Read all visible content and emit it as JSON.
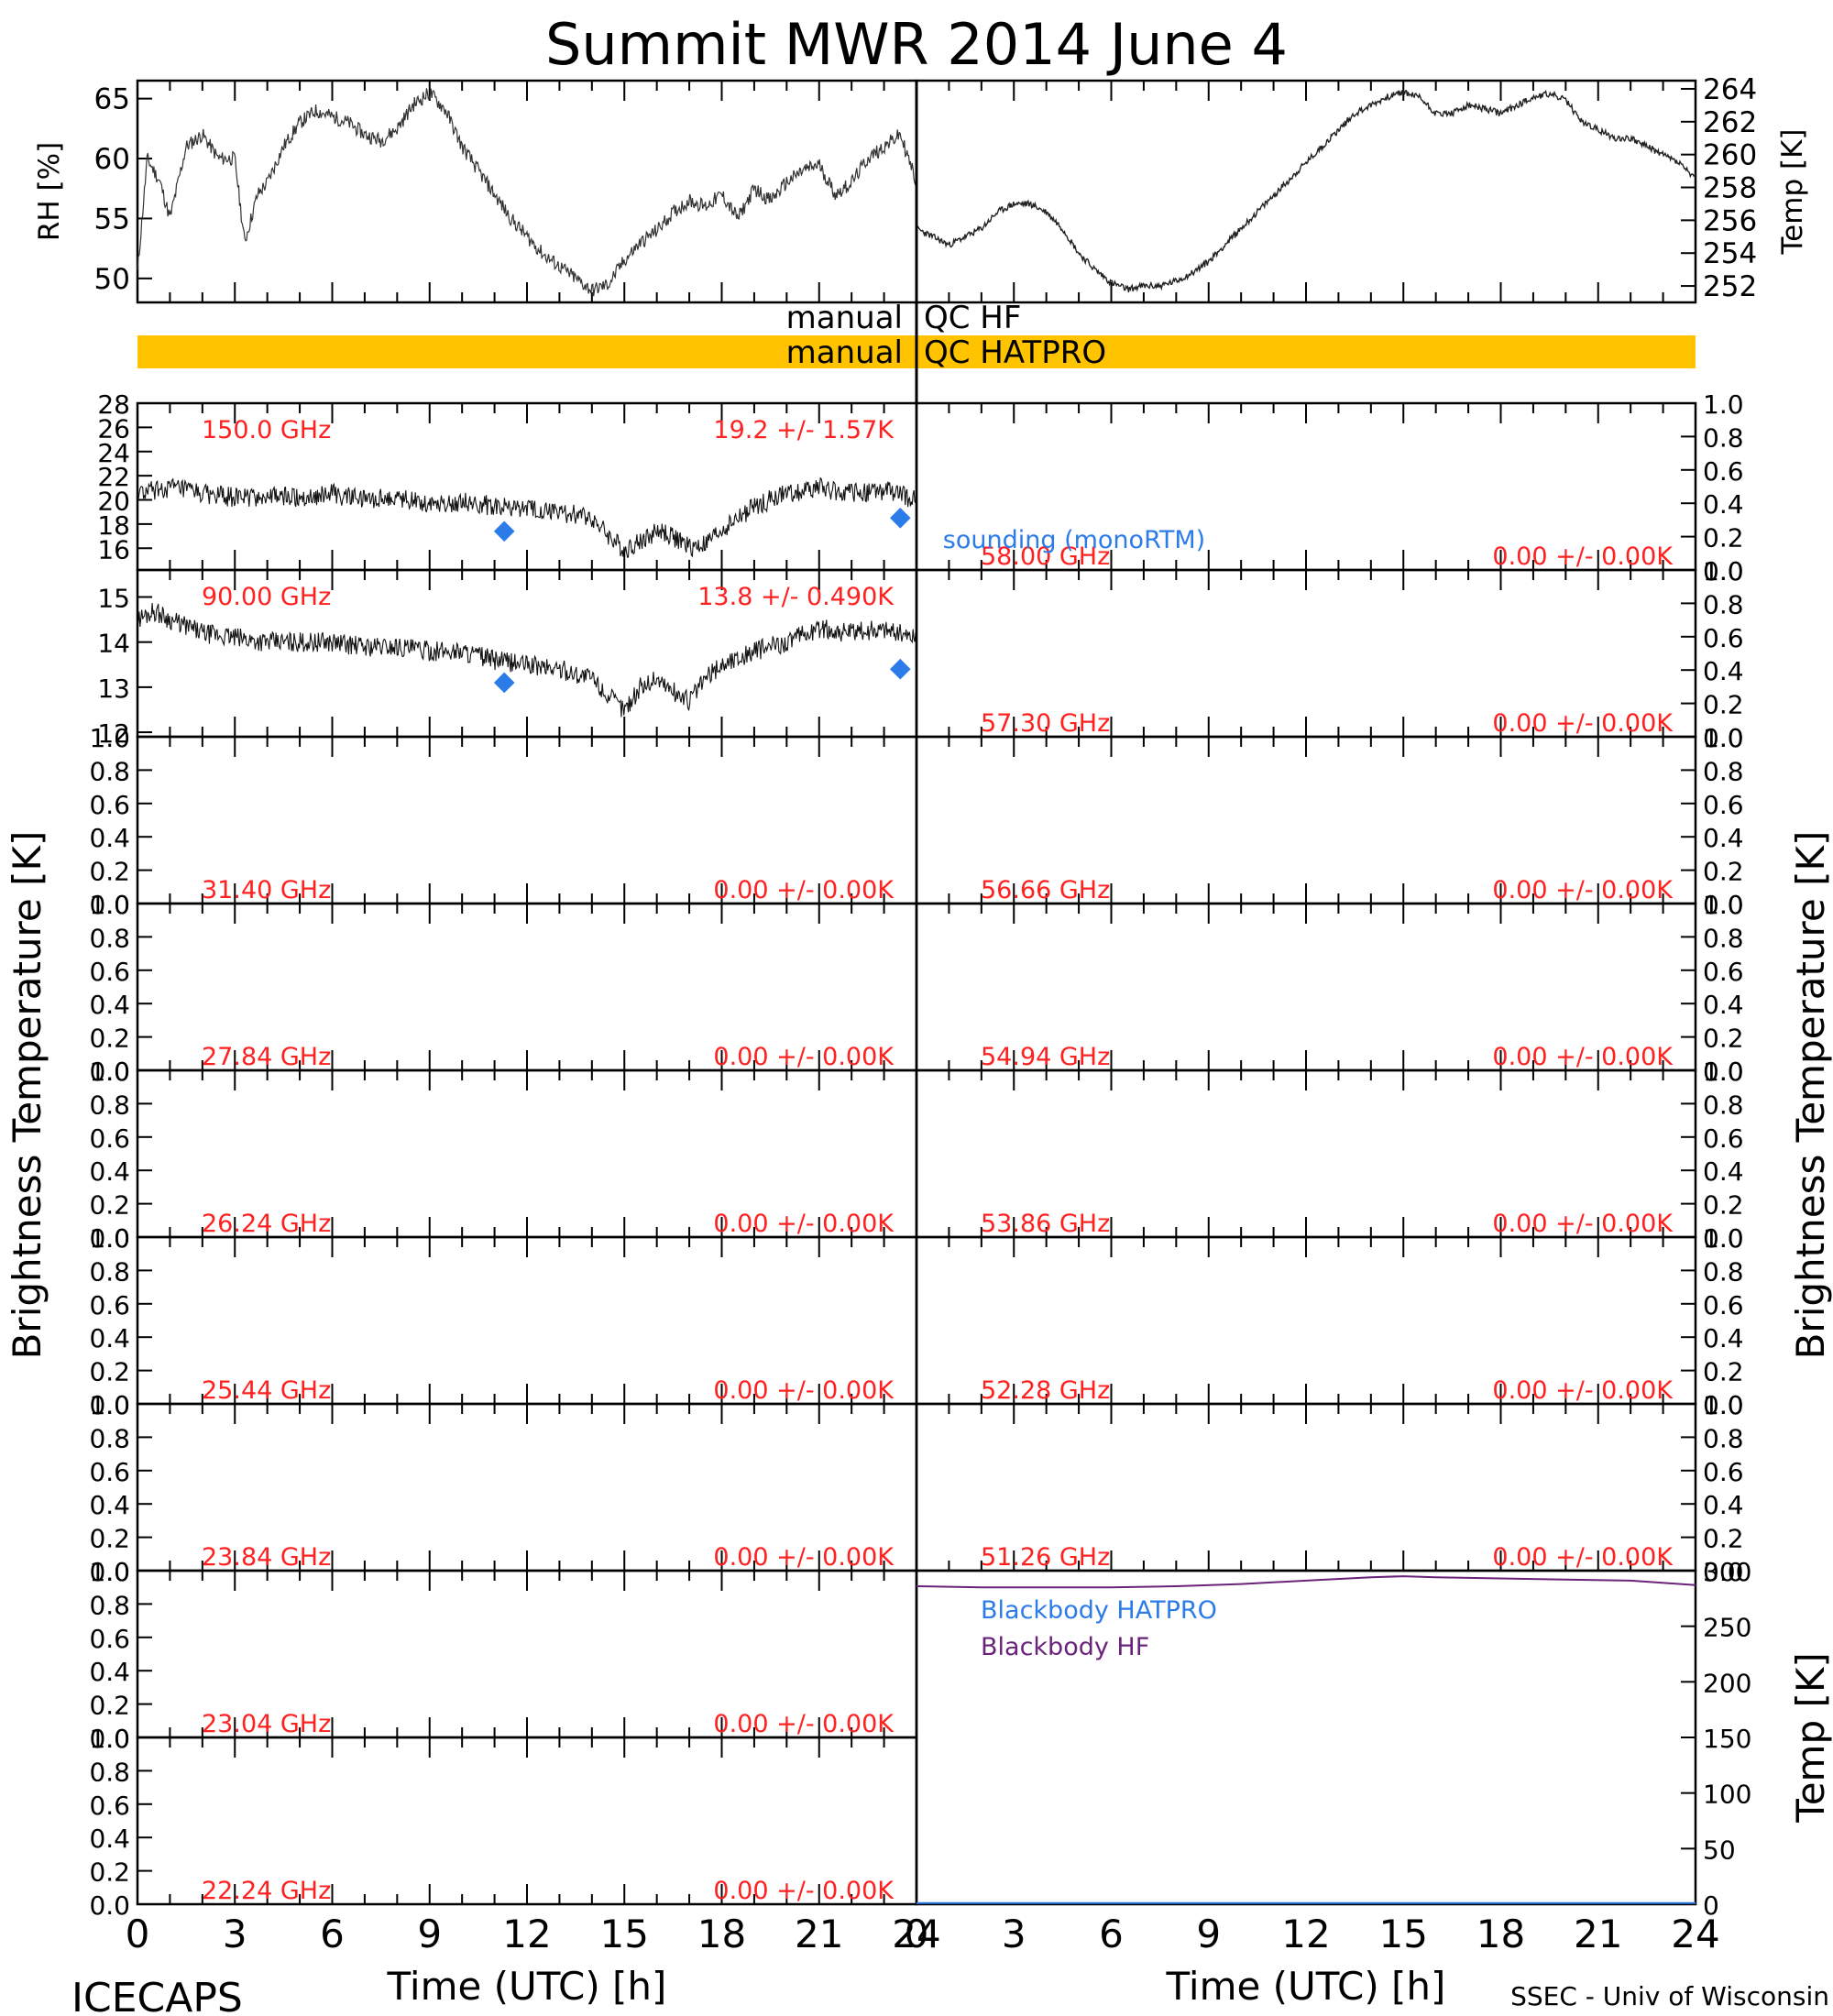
{
  "title": "Summit MWR 2014 June  4",
  "footer": {
    "left": "ICECAPS",
    "right": "SSEC - Univ of Wisconsin"
  },
  "x_axis": {
    "label": "Time (UTC) [h]",
    "ticks": [
      "0",
      "3",
      "6",
      "9",
      "12",
      "15",
      "18",
      "21",
      "24"
    ]
  },
  "left_axis_title": "Brightness Temperature [K]",
  "right_axis_title": "Brightness Temperature [K]",
  "colors": {
    "accent_red": "#ff2020",
    "sounding_blue": "#2b7be8",
    "bb_purple": "#6a237a",
    "qc_bar": "#ffc300"
  },
  "qc": {
    "hf_left": "manual",
    "hf_right": "QC HF",
    "hatpro_left": "manual",
    "hatpro_right": "QC HATPRO"
  },
  "sounding_label": "sounding (monoRTM)",
  "blackbody": {
    "hatpro_label": "Blackbody HATPRO",
    "hf_label": "Blackbody HF"
  },
  "chart_data": [
    {
      "id": "met",
      "type": "line",
      "title": "",
      "xlabel": "Time (UTC) [h]",
      "left": {
        "ylabel": "RH [%]",
        "ylim": [
          48,
          66.5
        ],
        "ticks": [
          "50",
          "55",
          "60",
          "65"
        ],
        "x": [
          0,
          0.3,
          0.7,
          1,
          1.5,
          2,
          2.5,
          3,
          3.3,
          3.7,
          4,
          4.5,
          5,
          5.5,
          6,
          6.5,
          7,
          7.5,
          8,
          8.5,
          9,
          9.5,
          10,
          10.5,
          11,
          11.5,
          12,
          12.5,
          13,
          13.5,
          14,
          14.5,
          15,
          15.5,
          16,
          16.5,
          17,
          17.5,
          18,
          18.5,
          19,
          19.5,
          20,
          20.5,
          21,
          21.5,
          22,
          22.5,
          23,
          23.5,
          24
        ],
        "y": [
          50.5,
          60,
          58,
          55,
          61,
          62,
          60,
          60,
          53,
          57,
          58,
          61,
          63,
          64,
          63.5,
          63,
          62,
          61.5,
          62.5,
          64.5,
          65.5,
          64,
          61,
          59,
          57,
          55,
          53.5,
          52,
          51,
          50,
          49,
          49.5,
          51.5,
          53,
          54,
          55.5,
          56.5,
          56,
          57,
          55,
          57.5,
          56.5,
          58,
          59,
          59.5,
          57,
          58,
          60,
          61,
          62,
          58
        ]
      },
      "right": {
        "ylabel": "Temp [K]",
        "ylim": [
          251,
          264.5
        ],
        "ticks": [
          "252",
          "254",
          "256",
          "258",
          "260",
          "262",
          "264"
        ],
        "x": [
          0,
          0.5,
          1,
          1.5,
          2,
          2.5,
          3,
          3.5,
          4,
          4.5,
          5,
          5.5,
          6,
          6.5,
          7,
          7.5,
          8,
          8.5,
          9,
          9.5,
          10,
          10.5,
          11,
          11.5,
          12,
          12.5,
          13,
          13.5,
          14,
          14.5,
          15,
          15.5,
          16,
          16.5,
          17,
          17.5,
          18,
          18.5,
          19,
          19.5,
          20,
          20.5,
          21,
          21.5,
          22,
          22.5,
          23,
          23.5,
          24
        ],
        "y": [
          255.5,
          255,
          254.5,
          255,
          255.5,
          256.5,
          257,
          257,
          256.5,
          255.5,
          254,
          253,
          252.2,
          251.8,
          252,
          252,
          252.3,
          252.8,
          253.5,
          254.5,
          255.5,
          256.5,
          257.5,
          258.5,
          259.5,
          260.5,
          261.5,
          262.5,
          263,
          263.5,
          263.8,
          263.5,
          262.5,
          262.5,
          263,
          262.8,
          262.5,
          263,
          263.5,
          263.7,
          263.3,
          262,
          261.5,
          261,
          261,
          260.5,
          260,
          259.5,
          258.5
        ]
      }
    },
    {
      "id": "ch-150",
      "type": "line",
      "label": "150.0 GHz",
      "stats": "19.2 +/-  1.57K",
      "ylim": [
        14.2,
        28
      ],
      "ticks": [
        "16",
        "18",
        "20",
        "22",
        "24",
        "26",
        "28"
      ],
      "x": [
        0,
        1,
        2,
        3,
        4,
        5,
        6,
        7,
        8,
        9,
        10,
        11,
        12,
        13,
        14,
        14.5,
        15,
        15.5,
        16,
        16.5,
        17,
        17.5,
        18,
        18.5,
        19,
        20,
        21,
        22,
        23,
        24
      ],
      "y": [
        20.5,
        21,
        20.5,
        20.2,
        20.3,
        20.2,
        20.5,
        20,
        20.2,
        19.8,
        19.8,
        19.5,
        19.2,
        19,
        18.5,
        17,
        15.8,
        16.5,
        17.5,
        17,
        16,
        16.3,
        17.5,
        18.5,
        19.5,
        20.5,
        21,
        20.5,
        20.8,
        20
      ],
      "sounding": [
        {
          "x": 11.3,
          "y": 17.4
        },
        {
          "x": 23.5,
          "y": 18.5
        }
      ]
    },
    {
      "id": "ch-90",
      "type": "line",
      "label": "90.00 GHz",
      "stats": "13.8 +/- 0.490K",
      "ylim": [
        11.9,
        15.6
      ],
      "ticks": [
        "12",
        "13",
        "14",
        "15"
      ],
      "x": [
        0,
        0.5,
        1,
        2,
        3,
        4,
        5,
        6,
        7,
        8,
        9,
        10,
        11,
        12,
        13,
        14,
        14.5,
        15,
        15.5,
        16,
        16.5,
        17,
        17.5,
        18,
        19,
        20,
        21,
        22,
        23,
        24
      ],
      "y": [
        14.5,
        14.7,
        14.5,
        14.2,
        14.1,
        14,
        14,
        14,
        13.9,
        13.9,
        13.8,
        13.8,
        13.6,
        13.5,
        13.4,
        13.2,
        12.8,
        12.5,
        13,
        13.2,
        12.9,
        12.7,
        13.2,
        13.5,
        13.8,
        14,
        14.3,
        14.2,
        14.3,
        14.1
      ],
      "sounding": [
        {
          "x": 11.3,
          "y": 13.1
        },
        {
          "x": 23.5,
          "y": 13.4
        }
      ]
    },
    {
      "id": "ch-58.00",
      "type": "line",
      "label": "58.00 GHz",
      "stats": "0.00 +/-  0.00K",
      "ylim": [
        0,
        1
      ],
      "ticks": [
        "0.0",
        "0.2",
        "0.4",
        "0.6",
        "0.8",
        "1.0"
      ],
      "values": []
    },
    {
      "id": "ch-57.30",
      "type": "line",
      "label": "57.30 GHz",
      "stats": "0.00 +/-  0.00K",
      "ylim": [
        0,
        1
      ],
      "ticks": [
        "0.0",
        "0.2",
        "0.4",
        "0.6",
        "0.8",
        "1.0"
      ],
      "values": []
    },
    {
      "id": "ch-31.40",
      "type": "line",
      "label": "31.40 GHz",
      "stats": "0.00 +/-  0.00K",
      "ylim": [
        0,
        1
      ],
      "ticks": [
        "0.0",
        "0.2",
        "0.4",
        "0.6",
        "0.8",
        "1.0"
      ],
      "values": []
    },
    {
      "id": "ch-56.66",
      "type": "line",
      "label": "56.66 GHz",
      "stats": "0.00 +/-  0.00K",
      "ylim": [
        0,
        1
      ],
      "ticks": [
        "0.0",
        "0.2",
        "0.4",
        "0.6",
        "0.8",
        "1.0"
      ],
      "values": []
    },
    {
      "id": "ch-27.84",
      "type": "line",
      "label": "27.84 GHz",
      "stats": "0.00 +/-  0.00K",
      "ylim": [
        0,
        1
      ],
      "ticks": [
        "0.0",
        "0.2",
        "0.4",
        "0.6",
        "0.8",
        "1.0"
      ],
      "values": []
    },
    {
      "id": "ch-54.94",
      "type": "line",
      "label": "54.94 GHz",
      "stats": "0.00 +/-  0.00K",
      "ylim": [
        0,
        1
      ],
      "ticks": [
        "0.0",
        "0.2",
        "0.4",
        "0.6",
        "0.8",
        "1.0"
      ],
      "values": []
    },
    {
      "id": "ch-26.24",
      "type": "line",
      "label": "26.24 GHz",
      "stats": "0.00 +/-  0.00K",
      "ylim": [
        0,
        1
      ],
      "ticks": [
        "0.0",
        "0.2",
        "0.4",
        "0.6",
        "0.8",
        "1.0"
      ],
      "values": []
    },
    {
      "id": "ch-53.86",
      "type": "line",
      "label": "53.86 GHz",
      "stats": "0.00 +/-  0.00K",
      "ylim": [
        0,
        1
      ],
      "ticks": [
        "0.0",
        "0.2",
        "0.4",
        "0.6",
        "0.8",
        "1.0"
      ],
      "values": []
    },
    {
      "id": "ch-25.44",
      "type": "line",
      "label": "25.44 GHz",
      "stats": "0.00 +/-  0.00K",
      "ylim": [
        0,
        1
      ],
      "ticks": [
        "0.0",
        "0.2",
        "0.4",
        "0.6",
        "0.8",
        "1.0"
      ],
      "values": []
    },
    {
      "id": "ch-52.28",
      "type": "line",
      "label": "52.28 GHz",
      "stats": "0.00 +/-  0.00K",
      "ylim": [
        0,
        1
      ],
      "ticks": [
        "0.0",
        "0.2",
        "0.4",
        "0.6",
        "0.8",
        "1.0"
      ],
      "values": []
    },
    {
      "id": "ch-23.84",
      "type": "line",
      "label": "23.84 GHz",
      "stats": "0.00 +/-  0.00K",
      "ylim": [
        0,
        1
      ],
      "ticks": [
        "0.0",
        "0.2",
        "0.4",
        "0.6",
        "0.8",
        "1.0"
      ],
      "values": []
    },
    {
      "id": "ch-51.26",
      "type": "line",
      "label": "51.26 GHz",
      "stats": "0.00 +/-  0.00K",
      "ylim": [
        0,
        1
      ],
      "ticks": [
        "0.0",
        "0.2",
        "0.4",
        "0.6",
        "0.8",
        "1.0"
      ],
      "values": []
    },
    {
      "id": "ch-23.04",
      "type": "line",
      "label": "23.04 GHz",
      "stats": "0.00 +/-  0.00K",
      "ylim": [
        0,
        1
      ],
      "ticks": [
        "0.0",
        "0.2",
        "0.4",
        "0.6",
        "0.8",
        "1.0"
      ],
      "values": []
    },
    {
      "id": "ch-22.24",
      "type": "line",
      "label": "22.24 GHz",
      "stats": "0.00 +/-  0.00K",
      "ylim": [
        0,
        1
      ],
      "ticks": [
        "0.0",
        "0.2",
        "0.4",
        "0.6",
        "0.8",
        "1.0"
      ],
      "values": []
    },
    {
      "id": "blackbody",
      "type": "line",
      "ylabel": "Temp [K]",
      "ylim": [
        0,
        300
      ],
      "ticks": [
        "0",
        "50",
        "100",
        "150",
        "200",
        "250",
        "300"
      ],
      "series": [
        {
          "name": "Blackbody HATPRO",
          "color": "#2b7be8",
          "x": [
            0,
            24
          ],
          "y": [
            1,
            1
          ]
        },
        {
          "name": "Blackbody HF",
          "color": "#6a237a",
          "x": [
            0,
            2,
            4,
            6,
            8,
            10,
            12,
            14,
            15,
            16,
            18,
            20,
            22,
            24
          ],
          "y": [
            286,
            285,
            285,
            285,
            286,
            288,
            291,
            294,
            295,
            294,
            293,
            292,
            291,
            287
          ]
        }
      ]
    }
  ]
}
